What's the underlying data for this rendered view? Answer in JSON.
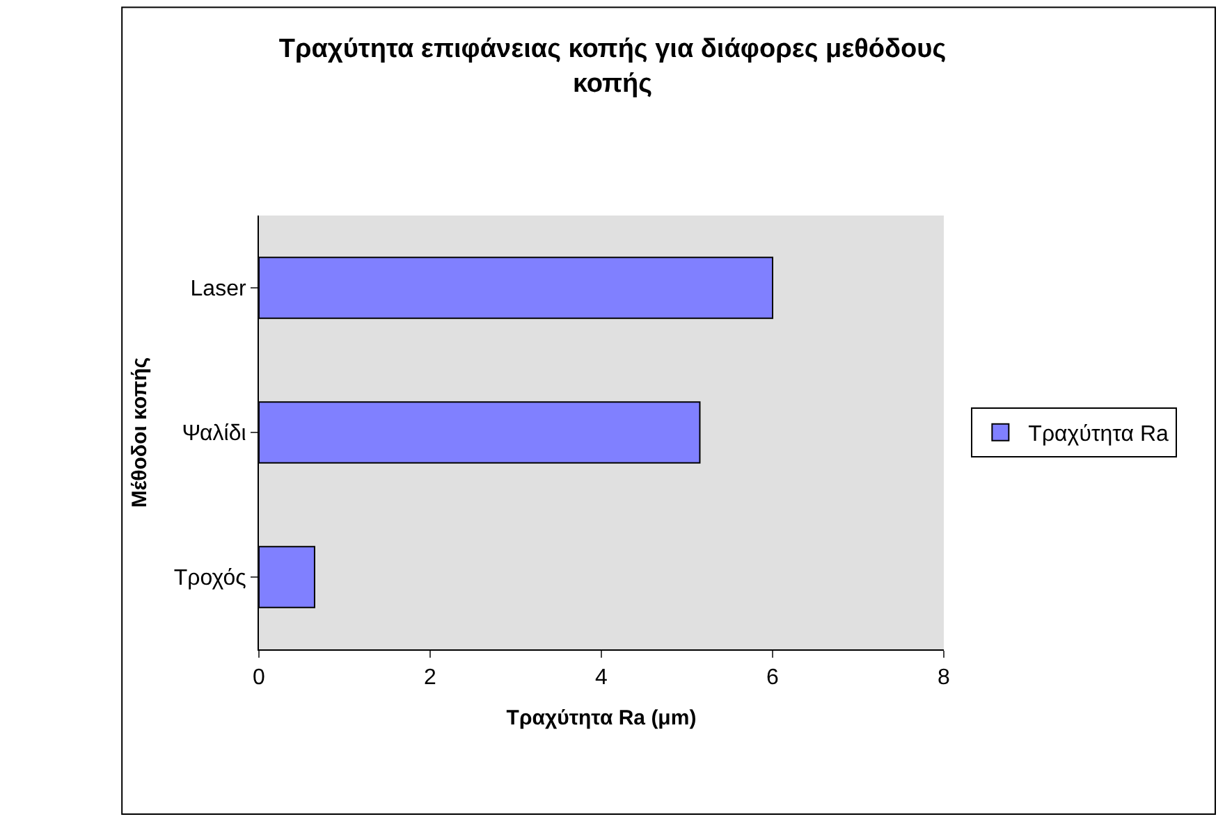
{
  "chart_data": {
    "type": "bar",
    "orientation": "horizontal",
    "title": "Τραχύτητα επιφάνειας κοπής για διάφορες μεθόδους κοπής",
    "xlabel": "Τραχύτητα Ra (μm)",
    "ylabel": "Μέθοδοι κοπής",
    "categories": [
      "Laser",
      "Ψαλίδι",
      "Τροχός"
    ],
    "series": [
      {
        "name": "Τραχύτητα Ra",
        "color": "#8080ff",
        "values": [
          6.0,
          5.15,
          0.65
        ]
      }
    ],
    "xlim": [
      0,
      8
    ],
    "xticks": [
      0,
      2,
      4,
      6,
      8
    ],
    "grid": false,
    "legend": "right"
  }
}
